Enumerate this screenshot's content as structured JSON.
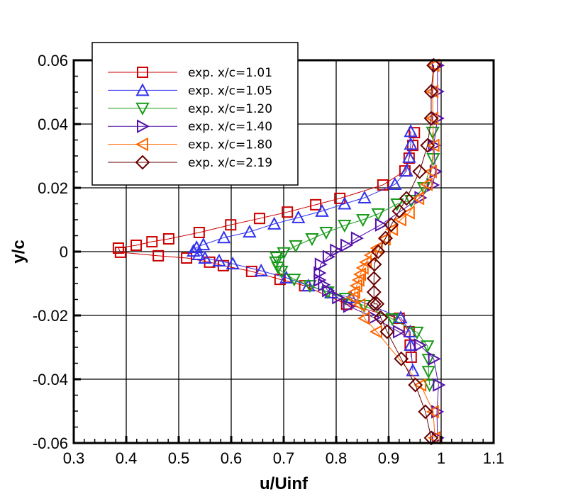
{
  "chart_data": {
    "type": "line",
    "xlabel": "u/Uinf",
    "ylabel": "y/c",
    "xlim": [
      0.3,
      1.1
    ],
    "ylim": [
      -0.06,
      0.06
    ],
    "grid": true,
    "legend_position": "top-left",
    "xticks": [
      "0.3",
      "0.4",
      "0.5",
      "0.6",
      "0.7",
      "0.8",
      "0.9",
      "1",
      "1.1"
    ],
    "xtick_values": [
      0.3,
      0.4,
      0.5,
      0.6,
      0.7,
      0.8,
      0.9,
      1.0,
      1.1
    ],
    "yticks": [
      "0.06",
      "0.04",
      "0.02",
      "0",
      "-0.02",
      "-0.04",
      "-0.06"
    ],
    "ytick_values": [
      0.06,
      0.04,
      0.02,
      0,
      -0.02,
      -0.04,
      -0.06
    ],
    "series": [
      {
        "name": "exp. x/c=1.01",
        "color": "#cc0000",
        "marker": "square",
        "x": [
          0.949,
          0.946,
          0.939,
          0.931,
          0.889,
          0.807,
          0.761,
          0.707,
          0.654,
          0.599,
          0.539,
          0.481,
          0.449,
          0.419,
          0.385,
          0.389,
          0.461,
          0.515,
          0.559,
          0.585,
          0.639,
          0.693,
          0.74,
          0.82,
          0.92,
          0.939,
          0.941,
          0.943
        ],
        "y": [
          0.0373,
          0.0333,
          0.0293,
          0.0253,
          0.0209,
          0.0167,
          0.0147,
          0.0124,
          0.0104,
          0.0084,
          0.006,
          0.004,
          0.0031,
          0.002,
          0.0011,
          -0.0002,
          -0.0013,
          -0.002,
          -0.0033,
          -0.0044,
          -0.0062,
          -0.0087,
          -0.0107,
          -0.0165,
          -0.0209,
          -0.0251,
          -0.0293,
          -0.0331
        ]
      },
      {
        "name": "exp. x/c=1.05",
        "color": "#3333ee",
        "marker": "triangle-up",
        "x": [
          0.942,
          0.942,
          0.939,
          0.934,
          0.912,
          0.854,
          0.816,
          0.773,
          0.728,
          0.682,
          0.635,
          0.586,
          0.547,
          0.534,
          0.528,
          0.538,
          0.55,
          0.577,
          0.603,
          0.657,
          0.705,
          0.747,
          0.79,
          0.828,
          0.923,
          0.941,
          0.942,
          0.946
        ],
        "y": [
          0.0377,
          0.0337,
          0.0296,
          0.0253,
          0.0211,
          0.0169,
          0.015,
          0.0127,
          0.0107,
          0.0087,
          0.0062,
          0.0044,
          0.0022,
          0.0013,
          0.0002,
          -0.0009,
          -0.002,
          -0.0029,
          -0.0038,
          -0.006,
          -0.0082,
          -0.0107,
          -0.0129,
          -0.0144,
          -0.0207,
          -0.0251,
          -0.0293,
          -0.0373
        ]
      },
      {
        "name": "exp. x/c=1.20",
        "color": "#1a9a1a",
        "marker": "triangle-down",
        "x": [
          0.984,
          0.985,
          0.967,
          0.943,
          0.916,
          0.88,
          0.851,
          0.816,
          0.781,
          0.754,
          0.723,
          0.7,
          0.686,
          0.685,
          0.689,
          0.696,
          0.72,
          0.75,
          0.784,
          0.818,
          0.853,
          0.907,
          0.954,
          0.974,
          0.976,
          0.976,
          0.978
        ],
        "y": [
          0.0374,
          0.0291,
          0.02,
          0.016,
          0.0149,
          0.0118,
          0.01,
          0.0082,
          0.006,
          0.004,
          0.0018,
          -0.0004,
          -0.0018,
          -0.0033,
          -0.0049,
          -0.0062,
          -0.0087,
          -0.0107,
          -0.0127,
          -0.0147,
          -0.0169,
          -0.0211,
          -0.0253,
          -0.0296,
          -0.0338,
          -0.0376,
          -0.0418
        ]
      },
      {
        "name": "exp. x/c=1.40",
        "color": "#5511aa",
        "marker": "triangle-right",
        "x": [
          0.993,
          0.993,
          0.993,
          0.986,
          0.989,
          0.984,
          0.96,
          0.885,
          0.839,
          0.819,
          0.799,
          0.785,
          0.77,
          0.768,
          0.768,
          0.776,
          0.784,
          0.803,
          0.824,
          0.872,
          0.919,
          0.959,
          0.986,
          0.995,
          0.992,
          0.993
        ],
        "y": [
          0.0584,
          0.0502,
          0.0418,
          0.0333,
          0.0251,
          0.0209,
          0.0169,
          0.0084,
          0.0042,
          0.002,
          0.0004,
          -0.0016,
          -0.004,
          -0.0067,
          -0.0089,
          -0.0104,
          -0.0122,
          -0.0144,
          -0.0171,
          -0.0207,
          -0.0251,
          -0.0293,
          -0.0336,
          -0.0418,
          -0.0502,
          -0.0584
        ]
      },
      {
        "name": "exp. x/c=1.80",
        "color": "#ff6600",
        "marker": "triangle-left",
        "x": [
          0.986,
          0.984,
          0.984,
          0.986,
          0.981,
          0.973,
          0.957,
          0.939,
          0.923,
          0.907,
          0.893,
          0.878,
          0.866,
          0.857,
          0.851,
          0.846,
          0.843,
          0.839,
          0.835,
          0.832,
          0.845,
          0.854,
          0.877,
          0.961,
          0.985,
          0.988
        ],
        "y": [
          0.0584,
          0.0502,
          0.0418,
          0.0333,
          0.0251,
          0.0211,
          0.0167,
          0.0122,
          0.01,
          0.007,
          0.004,
          0.0011,
          -0.0011,
          -0.0033,
          -0.0051,
          -0.0071,
          -0.0089,
          -0.0107,
          -0.0127,
          -0.0144,
          -0.0167,
          -0.0209,
          -0.0251,
          -0.0418,
          -0.0502,
          -0.0584
        ]
      },
      {
        "name": "exp. x/c=2.19",
        "color": "#660000",
        "marker": "diamond",
        "x": [
          0.986,
          0.981,
          0.981,
          0.974,
          0.959,
          0.934,
          0.92,
          0.905,
          0.894,
          0.88,
          0.873,
          0.872,
          0.872,
          0.872,
          0.878,
          0.885,
          0.897,
          0.924,
          0.951,
          0.97,
          0.981
        ],
        "y": [
          0.0584,
          0.0502,
          0.0418,
          0.0333,
          0.0251,
          0.0167,
          0.0127,
          0.0084,
          0.0042,
          0.0,
          -0.004,
          -0.0084,
          -0.0127,
          -0.0164,
          -0.0164,
          -0.0207,
          -0.0251,
          -0.0336,
          -0.0418,
          -0.0502,
          -0.0584
        ]
      }
    ]
  }
}
